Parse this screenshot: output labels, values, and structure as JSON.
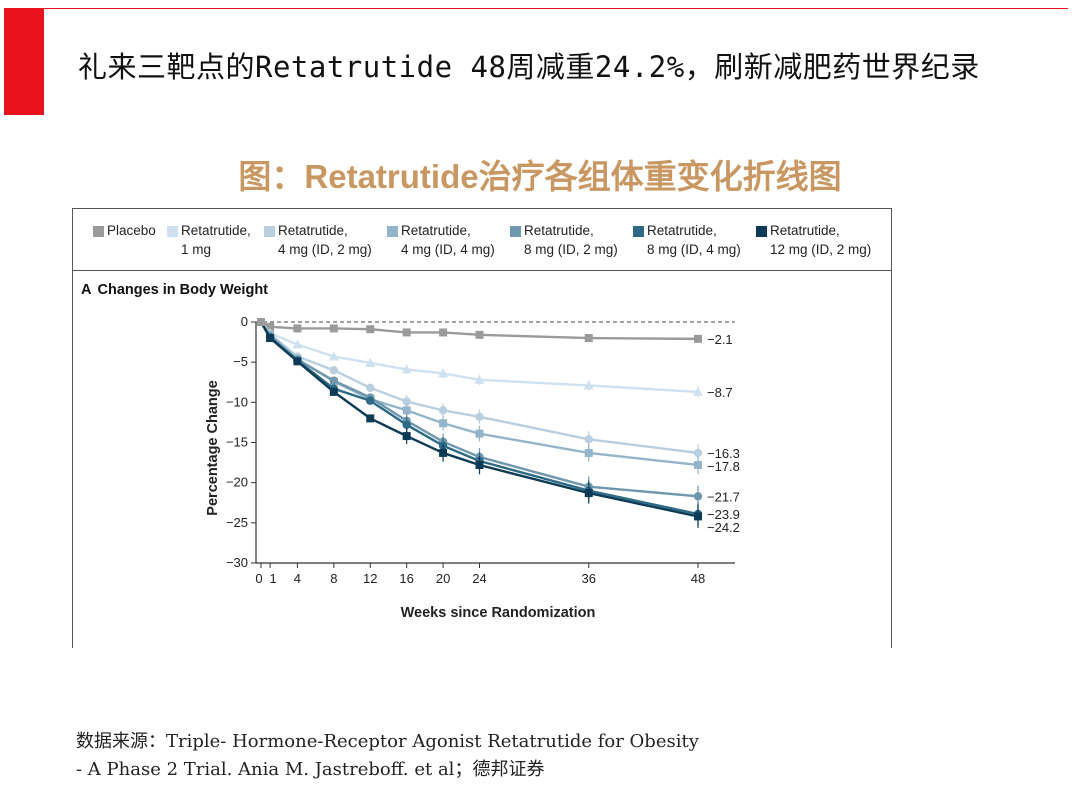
{
  "header": {
    "title": "礼来三靶点的Retatrutide 48周减重24.2%，刷新减肥药世界纪录"
  },
  "figure": {
    "title": "图：Retatrutide治疗各组体重变化折线图",
    "panel_letter": "A",
    "panel_title": "Changes in Body Weight"
  },
  "legend": [
    {
      "line1": "Placebo",
      "line2": "",
      "color": "#9a9a9a"
    },
    {
      "line1": "Retatrutide,",
      "line2": "1 mg",
      "color": "#cfe0f0"
    },
    {
      "line1": "Retatrutide,",
      "line2": "4 mg (ID, 2 mg)",
      "color": "#b9cfdf"
    },
    {
      "line1": "Retatrutide,",
      "line2": "4 mg (ID, 4 mg)",
      "color": "#94b5c9"
    },
    {
      "line1": "Retatrutide,",
      "line2": "8 mg (ID, 2 mg)",
      "color": "#6f97ae"
    },
    {
      "line1": "Retatrutide,",
      "line2": "8 mg (ID, 4 mg)",
      "color": "#2d6a86"
    },
    {
      "line1": "Retatrutide,",
      "line2": "12 mg (ID, 2 mg)",
      "color": "#0d3b55"
    }
  ],
  "chart_data": {
    "type": "line",
    "xlabel": "Weeks since Randomization",
    "ylabel": "Percentage Change",
    "x": [
      0,
      1,
      4,
      8,
      12,
      16,
      20,
      24,
      36,
      48
    ],
    "x_ticks": [
      "0",
      "1",
      "4",
      "8",
      "12",
      "16",
      "20",
      "24",
      "36",
      "48"
    ],
    "y_ticks": [
      0,
      -5,
      -10,
      -15,
      -20,
      -25,
      -30
    ],
    "ylim": [
      -30,
      0
    ],
    "reference_line_y": 0,
    "series": [
      {
        "key": "placebo",
        "color": "#9a9a9a",
        "marker": "square",
        "end_label": "−2.1",
        "values": [
          0,
          -0.6,
          -0.8,
          -0.8,
          -0.9,
          -1.3,
          -1.3,
          -1.6,
          -2.0,
          -2.1
        ]
      },
      {
        "key": "r1",
        "color": "#cfe0f0",
        "marker": "triangle",
        "end_label": "−8.7",
        "values": [
          0,
          -1.4,
          -2.8,
          -4.3,
          -5.1,
          -5.9,
          -6.4,
          -7.2,
          -7.9,
          -8.7
        ]
      },
      {
        "key": "r4_2",
        "color": "#b9cfdf",
        "marker": "circle",
        "end_label": "−16.3",
        "values": [
          0,
          -1.5,
          -4.3,
          -6.0,
          -8.2,
          -9.9,
          -11.0,
          -11.8,
          -14.6,
          -16.3
        ]
      },
      {
        "key": "r4_4",
        "color": "#94b5c9",
        "marker": "square",
        "end_label": "−17.8",
        "values": [
          0,
          -1.6,
          -4.6,
          -7.4,
          -9.6,
          -11.0,
          -12.6,
          -13.9,
          -16.3,
          -17.8
        ]
      },
      {
        "key": "r8_2",
        "color": "#6f97ae",
        "marker": "circle",
        "end_label": "−21.7",
        "values": [
          0,
          -1.8,
          -4.7,
          -7.3,
          -9.4,
          -12.3,
          -14.9,
          -16.8,
          -20.5,
          -21.7
        ]
      },
      {
        "key": "r8_4",
        "color": "#2d6a86",
        "marker": "circle",
        "end_label": "−23.9",
        "values": [
          0,
          -1.9,
          -4.8,
          -8.3,
          -9.8,
          -12.8,
          -15.4,
          -17.3,
          -21.0,
          -23.9
        ]
      },
      {
        "key": "r12_2",
        "color": "#0d3b55",
        "marker": "square",
        "end_label": "−24.2",
        "values": [
          0,
          -2.0,
          -4.9,
          -8.7,
          -12.0,
          -14.2,
          -16.3,
          -17.8,
          -21.3,
          -24.2
        ]
      }
    ]
  },
  "source": {
    "line1": "数据来源：Triple- Hormone-Receptor Agonist Retatrutide for Obesity",
    "line2": "- A Phase 2 Trial. Ania M. Jastreboff. et al；德邦证券"
  }
}
